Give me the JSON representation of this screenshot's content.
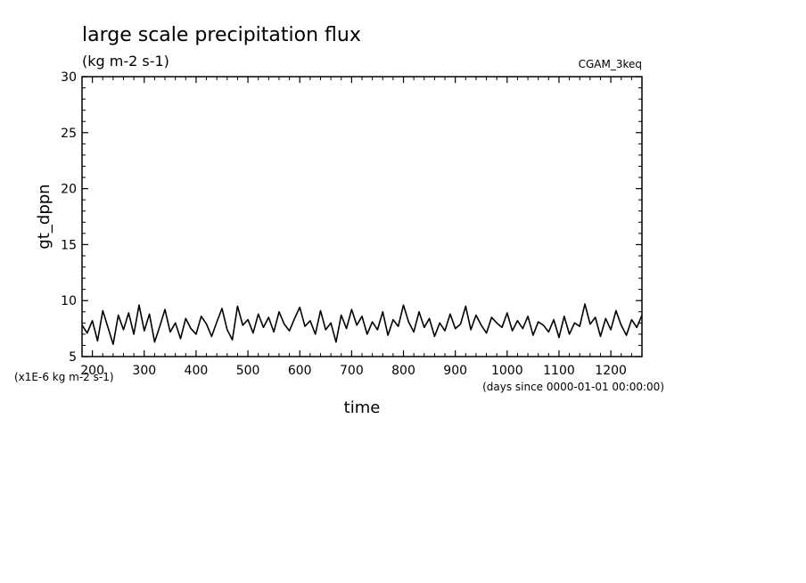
{
  "page": {
    "title": "large scale precipitation flux",
    "units": "(kg m-2 s-1)",
    "dataset": "CGAM_3keq",
    "scale_note": "(x1E-6 kg m-2 s-1)",
    "time_note": "(days since 0000-01-01 00:00:00)"
  },
  "colors": {
    "line": "#000000",
    "background": "#ffffff"
  },
  "chart_data": {
    "type": "line",
    "title": "large scale precipitation flux",
    "subtitle": "(kg m-2 s-1)",
    "xlabel": "time",
    "ylabel": "gt_dppn",
    "x_units": "days since 0000-01-01 00:00:00",
    "y_scale_note": "(x1E-6 kg m-2 s-1)",
    "xlim": [
      180,
      1260
    ],
    "ylim": [
      5,
      30
    ],
    "x_ticks": [
      200,
      300,
      400,
      500,
      600,
      700,
      800,
      900,
      1000,
      1100,
      1200
    ],
    "x_tick_labels": [
      "200",
      "300",
      "400",
      "500",
      "600",
      "700",
      "800",
      "900",
      "1000",
      "1100",
      "1200"
    ],
    "y_ticks": [
      5,
      10,
      15,
      20,
      25,
      30
    ],
    "y_tick_labels": [
      "5",
      "10",
      "15",
      "20",
      "25",
      "30"
    ],
    "grid": false,
    "series": [
      {
        "x": [
          180,
          190,
          200,
          210,
          220,
          230,
          240,
          250,
          260,
          270,
          280,
          290,
          300,
          310,
          320,
          330,
          340,
          350,
          360,
          370,
          380,
          390,
          400,
          410,
          420,
          430,
          440,
          450,
          460,
          470,
          480,
          490,
          500,
          510,
          520,
          530,
          540,
          550,
          560,
          570,
          580,
          590,
          600,
          610,
          620,
          630,
          640,
          650,
          660,
          670,
          680,
          690,
          700,
          710,
          720,
          730,
          740,
          750,
          760,
          770,
          780,
          790,
          800,
          810,
          820,
          830,
          840,
          850,
          860,
          870,
          880,
          890,
          900,
          910,
          920,
          930,
          940,
          950,
          960,
          970,
          980,
          990,
          1000,
          1010,
          1020,
          1030,
          1040,
          1050,
          1060,
          1070,
          1080,
          1090,
          1100,
          1110,
          1120,
          1130,
          1140,
          1150,
          1160,
          1170,
          1180,
          1190,
          1200,
          1210,
          1220,
          1230,
          1240,
          1250,
          1260
        ],
        "y": [
          7.8,
          7.1,
          8.2,
          6.4,
          9.1,
          7.6,
          6.1,
          8.7,
          7.4,
          8.9,
          7.0,
          9.6,
          7.3,
          8.8,
          6.3,
          7.7,
          9.2,
          7.2,
          8.0,
          6.6,
          8.4,
          7.5,
          7.0,
          8.6,
          7.9,
          6.8,
          8.1,
          9.3,
          7.4,
          6.5,
          9.5,
          7.8,
          8.3,
          7.1,
          8.8,
          7.6,
          8.5,
          7.2,
          9.0,
          7.9,
          7.3,
          8.4,
          9.4,
          7.7,
          8.2,
          7.0,
          9.1,
          7.4,
          8.0,
          6.3,
          8.7,
          7.5,
          9.2,
          7.8,
          8.6,
          7.0,
          8.1,
          7.4,
          9.0,
          6.9,
          8.3,
          7.7,
          9.6,
          8.1,
          7.2,
          9.0,
          7.6,
          8.4,
          6.8,
          8.0,
          7.3,
          8.8,
          7.5,
          7.9,
          9.5,
          7.4,
          8.7,
          7.8,
          7.1,
          8.5,
          8.0,
          7.6,
          8.9,
          7.3,
          8.2,
          7.5,
          8.6,
          6.9,
          8.1,
          7.8,
          7.2,
          8.3,
          6.7,
          8.6,
          7.0,
          8.0,
          7.7,
          9.7,
          7.9,
          8.5,
          6.8,
          8.4,
          7.4,
          9.1,
          7.8,
          6.9,
          8.3,
          7.6,
          8.7
        ]
      }
    ]
  }
}
